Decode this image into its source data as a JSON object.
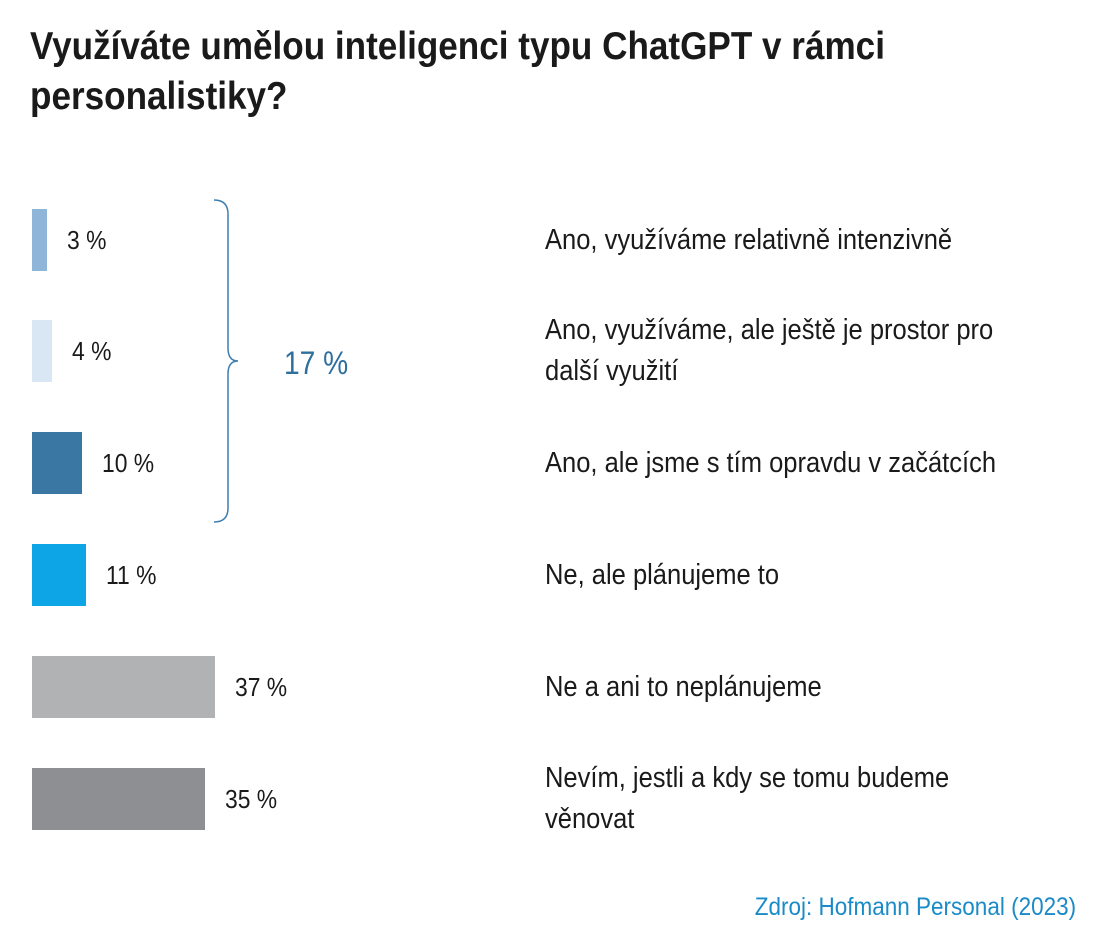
{
  "chart_data": {
    "type": "bar",
    "orientation": "horizontal",
    "title": "Využíváte umělou inteligenci typu ChatGPT v rámci personalistiky?",
    "categories": [
      "Ano, využíváme relativně intenzivně",
      "Ano, využíváme, ale ještě je prostor pro další využití",
      "Ano, ale jsme s tím opravdu v začátcích",
      "Ne, ale plánujeme to",
      "Ne a ani to neplánujeme",
      "Nevím, jestli a kdy se tomu budeme věnovat"
    ],
    "values": [
      3,
      4,
      10,
      11,
      37,
      35
    ],
    "value_labels": [
      "3 %",
      "4 %",
      "10 %",
      "11 %",
      "37 %",
      "35 %"
    ],
    "colors": [
      "#8fb5d9",
      "#d9e7f5",
      "#3a77a3",
      "#0ea5e6",
      "#b1b2b4",
      "#8e8f92"
    ],
    "group": {
      "label": "17 %",
      "members": [
        0,
        1,
        2
      ],
      "color": "#3d7fb0"
    },
    "xlabel": "",
    "ylabel": "",
    "grid": false,
    "legend": "none"
  },
  "source": "Zdroj: Hofmann Personal (2023)"
}
